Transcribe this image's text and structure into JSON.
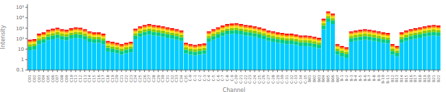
{
  "chart_data": {
    "type": "bar",
    "xlabel": "Channel",
    "ylabel": "Intensity",
    "log": "y",
    "stacked": true,
    "grid": false,
    "ylim": [
      0.1,
      200000
    ],
    "yticks": [
      0.1,
      1,
      10,
      {
        "value": 100,
        "label": "10²"
      },
      {
        "value": 1000,
        "label": "10³"
      },
      {
        "value": 10000,
        "label": "10⁴"
      },
      {
        "value": 100000,
        "label": "10⁵"
      }
    ],
    "categories": [
      "C01",
      "C02",
      "C03",
      "C04",
      "C05",
      "C06",
      "C07",
      "C08",
      "C09",
      "C10",
      "C11",
      "C12",
      "C13",
      "C14",
      "C15",
      "C16",
      "C17",
      "C18",
      "C19",
      "C20",
      "C21",
      "C22",
      "C23",
      "C24",
      "C25",
      "C26",
      "C27",
      "C28",
      "C29",
      "C30",
      "C31",
      "C32",
      "C33",
      "C34",
      "C35",
      "C-0",
      "C-1",
      "C-2",
      "C-3",
      "C-4",
      "C-5",
      "C-6",
      "C-7",
      "C-8",
      "C-9",
      "C-20",
      "C-21",
      "C-22",
      "C-23",
      "C-24",
      "C-25",
      "C-26",
      "C-27",
      "C-28",
      "C-29",
      "C-30",
      "C-31",
      "C-32",
      "C-33",
      "C-34",
      "C-35",
      "B01",
      "B02",
      "B03",
      "B04",
      "B05",
      "B06",
      "B07",
      "B-1",
      "B-2",
      "B-3",
      "B-4",
      "B-5",
      "B-6",
      "B-7",
      "B-8",
      "B-9",
      "B-10",
      "B-11",
      "B12",
      "B13",
      "B14",
      "B15",
      "B16",
      "B17",
      "B18",
      "B19",
      "B20",
      "B21",
      "B22"
    ],
    "series": [
      {
        "color": "#00ccff",
        "values": [
          8,
          9,
          30,
          40,
          70,
          90,
          110,
          80,
          70,
          100,
          120,
          110,
          80,
          50,
          40,
          40,
          30,
          6,
          5,
          4,
          3,
          4,
          5,
          90,
          150,
          200,
          250,
          200,
          180,
          150,
          120,
          100,
          80,
          60,
          4,
          3,
          2.5,
          3,
          3.5,
          50,
          80,
          120,
          180,
          250,
          280,
          300,
          250,
          200,
          180,
          150,
          120,
          90,
          60,
          50,
          40,
          35,
          30,
          30,
          25,
          20,
          20,
          18,
          15,
          12,
          800,
          4000,
          2500,
          3,
          2,
          1.5,
          50,
          60,
          70,
          80,
          70,
          60,
          50,
          40,
          35,
          3,
          2,
          40,
          60,
          80,
          100,
          120,
          150,
          180,
          200,
          180
        ]
      },
      {
        "color": "#00cc88",
        "values": [
          9.6,
          10.8,
          36,
          48,
          84,
          108,
          132,
          96,
          84,
          120,
          144,
          132,
          96,
          60,
          48,
          48,
          36,
          7.2,
          6,
          4.8,
          3.6,
          4.8,
          6,
          108,
          180,
          240,
          300,
          240,
          216,
          180,
          144,
          120,
          96,
          72,
          4.8,
          3.6,
          3,
          3.6,
          4.2,
          60,
          96,
          144,
          216,
          300,
          336,
          360,
          300,
          240,
          216,
          180,
          144,
          108,
          72,
          60,
          48,
          42,
          36,
          36,
          30,
          24,
          24,
          21.6,
          18,
          14.4,
          960,
          4800,
          3000,
          3.6,
          2.4,
          1.8,
          60,
          72,
          84,
          96,
          84,
          72,
          60,
          48,
          42,
          3.6,
          2.4,
          48,
          72,
          96,
          120,
          144,
          180,
          216,
          240,
          216
        ]
      },
      {
        "color": "#88cc00",
        "values": [
          12,
          13.5,
          45,
          60,
          105,
          135,
          165,
          120,
          105,
          150,
          180,
          165,
          120,
          75,
          60,
          60,
          45,
          9,
          7.5,
          6,
          4.5,
          6,
          7.5,
          135,
          225,
          300,
          375,
          300,
          270,
          225,
          180,
          150,
          120,
          90,
          6,
          4.5,
          3.75,
          4.5,
          5.25,
          75,
          120,
          180,
          270,
          375,
          420,
          450,
          375,
          300,
          270,
          225,
          180,
          135,
          90,
          75,
          60,
          52.5,
          45,
          45,
          37.5,
          30,
          30,
          27,
          22.5,
          18,
          1200,
          6000,
          3750,
          4.5,
          3,
          2.25,
          75,
          90,
          105,
          120,
          105,
          90,
          75,
          60,
          52.5,
          4.5,
          3,
          60,
          90,
          120,
          150,
          180,
          225,
          270,
          300,
          270
        ]
      },
      {
        "color": "#ffdd00",
        "values": [
          14.4,
          16.2,
          54,
          72,
          126,
          162,
          198,
          144,
          126,
          180,
          216,
          198,
          144,
          90,
          72,
          72,
          54,
          10.8,
          9,
          7.2,
          5.4,
          7.2,
          9,
          162,
          270,
          360,
          450,
          360,
          324,
          270,
          216,
          180,
          144,
          108,
          7.2,
          5.4,
          4.5,
          5.4,
          6.3,
          90,
          144,
          216,
          324,
          450,
          504,
          540,
          450,
          360,
          324,
          270,
          216,
          162,
          108,
          90,
          72,
          63,
          54,
          54,
          45,
          36,
          36,
          32.4,
          27,
          21.6,
          1440,
          7200,
          4500,
          5.4,
          3.6,
          2.7,
          90,
          108,
          126,
          144,
          126,
          108,
          90,
          72,
          63,
          5.4,
          3.6,
          72,
          108,
          144,
          180,
          216,
          270,
          324,
          360,
          324
        ]
      },
      {
        "color": "#ff7700",
        "values": [
          16,
          18,
          60,
          80,
          140,
          180,
          220,
          160,
          140,
          200,
          240,
          220,
          160,
          100,
          80,
          80,
          60,
          12,
          10,
          8,
          6,
          8,
          10,
          180,
          300,
          400,
          500,
          400,
          360,
          300,
          240,
          200,
          160,
          120,
          8,
          6,
          5,
          6,
          7,
          100,
          160,
          240,
          360,
          500,
          560,
          600,
          500,
          400,
          360,
          300,
          240,
          180,
          120,
          100,
          80,
          70,
          60,
          60,
          50,
          40,
          40,
          36,
          30,
          24,
          1600,
          8000,
          5000,
          6,
          4,
          3,
          100,
          120,
          140,
          160,
          140,
          120,
          100,
          80,
          70,
          6,
          4,
          80,
          120,
          160,
          200,
          240,
          300,
          360,
          400,
          360
        ]
      },
      {
        "color": "#ff0000",
        "values": [
          20,
          22.5,
          75,
          100,
          175,
          225,
          275,
          200,
          175,
          250,
          300,
          275,
          200,
          125,
          100,
          100,
          75,
          15,
          12.5,
          10,
          7.5,
          10,
          12.5,
          225,
          375,
          500,
          625,
          500,
          450,
          375,
          300,
          250,
          200,
          150,
          10,
          7.5,
          6.25,
          7.5,
          8.75,
          125,
          200,
          300,
          450,
          625,
          700,
          750,
          625,
          500,
          450,
          375,
          300,
          225,
          150,
          125,
          100,
          87.5,
          75,
          75,
          62.5,
          50,
          50,
          45,
          37.5,
          30,
          2000,
          10000,
          6250,
          7.5,
          5,
          3.75,
          125,
          150,
          175,
          200,
          175,
          150,
          125,
          100,
          87.5,
          7.5,
          5,
          100,
          150,
          200,
          250,
          300,
          375,
          450,
          500,
          450
        ]
      }
    ]
  }
}
